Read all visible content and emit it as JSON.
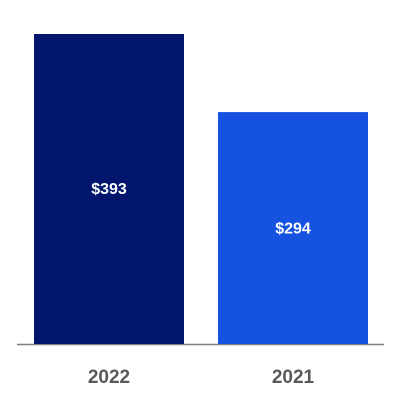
{
  "chart_data": {
    "type": "bar",
    "categories": [
      "2022",
      "2021"
    ],
    "values": [
      393,
      294
    ],
    "value_labels": [
      "$393",
      "$294"
    ],
    "colors": [
      "#00156b",
      "#1652e0"
    ]
  }
}
